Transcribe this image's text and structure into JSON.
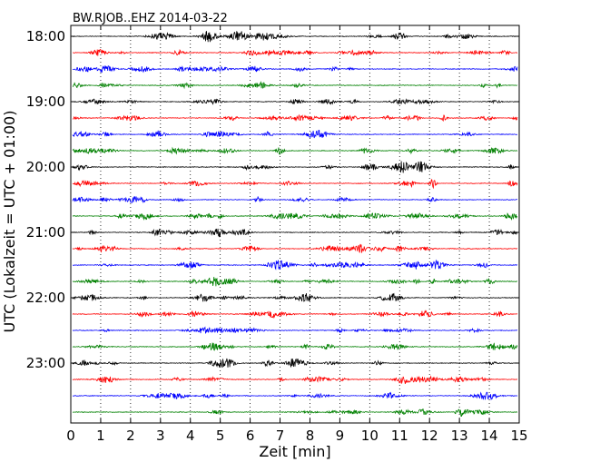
{
  "chart_data": {
    "type": "line",
    "title": "BW.RJOB..EHZ 2014-03-22",
    "xlabel": "Zeit  [min]",
    "ylabel": "UTC (Lokalzeit = UTC + 01:00)",
    "xlim": [
      0,
      15
    ],
    "x_ticks": [
      "0",
      "1",
      "2",
      "3",
      "4",
      "5",
      "6",
      "7",
      "8",
      "9",
      "10",
      "11",
      "12",
      "13",
      "14",
      "15"
    ],
    "y_tick_labels": [
      "18:00",
      "19:00",
      "20:00",
      "21:00",
      "22:00",
      "23:00"
    ],
    "grid": "vertical-dotted",
    "colors": [
      "#000000",
      "#ff0000",
      "#0000ff",
      "#008000"
    ],
    "traces": [
      {
        "start": "18:00",
        "color": "#000000"
      },
      {
        "start": "18:15",
        "color": "#ff0000"
      },
      {
        "start": "18:30",
        "color": "#0000ff"
      },
      {
        "start": "18:45",
        "color": "#008000"
      },
      {
        "start": "19:00",
        "color": "#000000"
      },
      {
        "start": "19:15",
        "color": "#ff0000"
      },
      {
        "start": "19:30",
        "color": "#0000ff"
      },
      {
        "start": "19:45",
        "color": "#008000"
      },
      {
        "start": "20:00",
        "color": "#000000"
      },
      {
        "start": "20:15",
        "color": "#ff0000"
      },
      {
        "start": "20:30",
        "color": "#0000ff"
      },
      {
        "start": "20:45",
        "color": "#008000"
      },
      {
        "start": "21:00",
        "color": "#000000"
      },
      {
        "start": "21:15",
        "color": "#ff0000"
      },
      {
        "start": "21:30",
        "color": "#0000ff"
      },
      {
        "start": "21:45",
        "color": "#008000"
      },
      {
        "start": "22:00",
        "color": "#000000"
      },
      {
        "start": "22:15",
        "color": "#ff0000"
      },
      {
        "start": "22:30",
        "color": "#0000ff"
      },
      {
        "start": "22:45",
        "color": "#008000"
      },
      {
        "start": "23:00",
        "color": "#000000"
      },
      {
        "start": "23:15",
        "color": "#ff0000"
      },
      {
        "start": "23:30",
        "color": "#0000ff"
      },
      {
        "start": "23:45",
        "color": "#008000"
      }
    ]
  }
}
